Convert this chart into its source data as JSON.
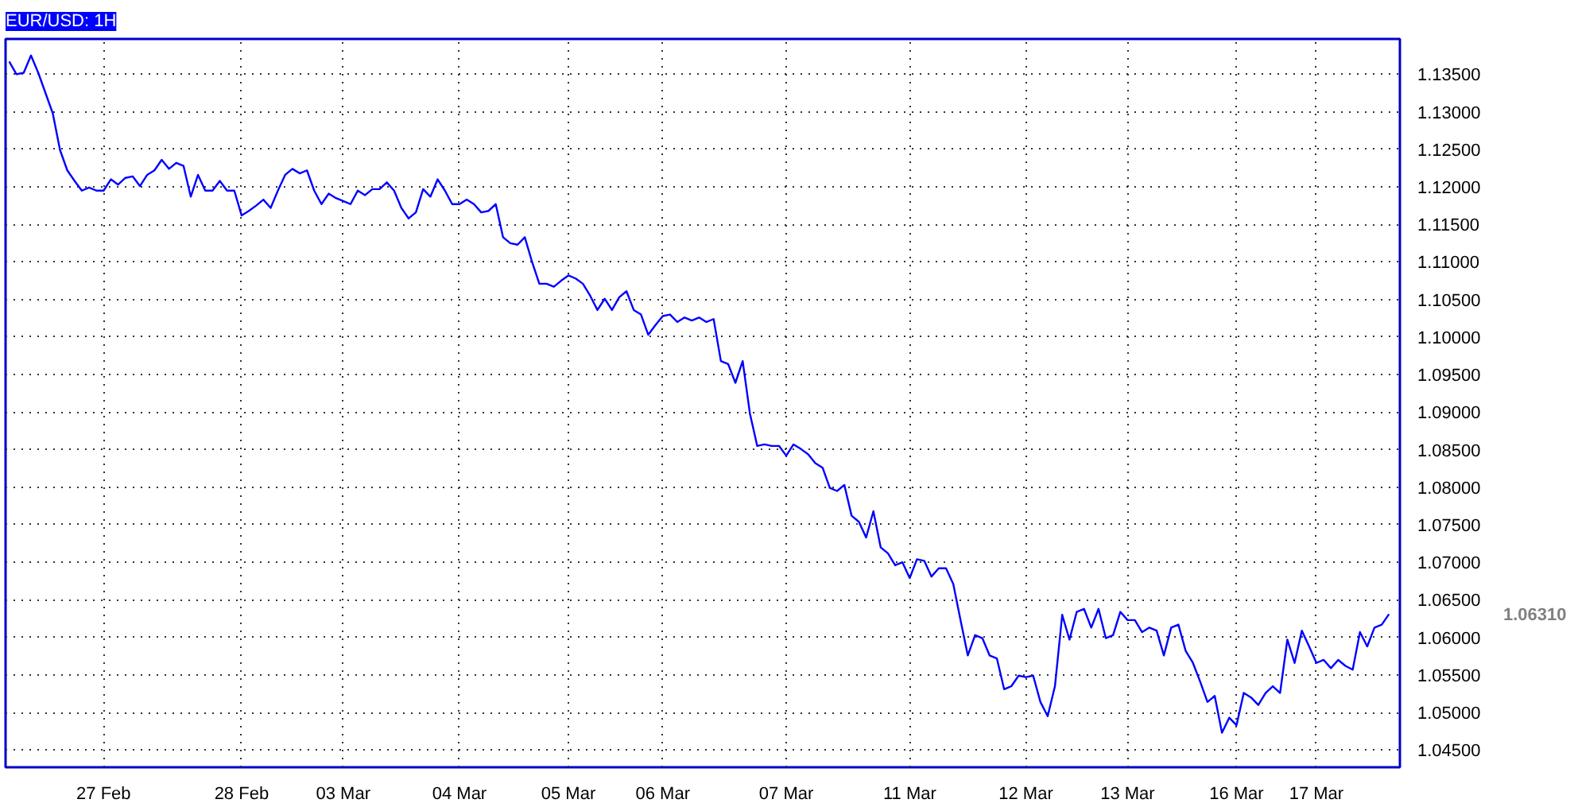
{
  "chart_data": {
    "type": "line",
    "title": "EUR/USD: 1H",
    "categories": [
      null,
      null,
      null,
      null,
      null,
      null,
      null,
      null,
      null,
      null,
      null,
      null,
      null,
      "27 Feb",
      null,
      null,
      null,
      null,
      null,
      null,
      null,
      null,
      null,
      null,
      null,
      null,
      null,
      null,
      null,
      null,
      null,
      null,
      "28 Feb",
      null,
      null,
      null,
      null,
      null,
      null,
      null,
      null,
      null,
      null,
      null,
      null,
      null,
      "03 Mar",
      null,
      null,
      null,
      null,
      null,
      null,
      null,
      null,
      null,
      null,
      null,
      null,
      null,
      null,
      null,
      "04 Mar",
      null,
      null,
      null,
      null,
      null,
      null,
      null,
      null,
      null,
      null,
      null,
      null,
      null,
      null,
      "05 Mar",
      null,
      null,
      null,
      null,
      null,
      null,
      null,
      null,
      null,
      null,
      null,
      null,
      "06 Mar",
      null,
      null,
      null,
      null,
      null,
      null,
      null,
      null,
      null,
      null,
      null,
      null,
      null,
      null,
      null,
      null,
      "07 Mar",
      null,
      null,
      null,
      null,
      null,
      null,
      null,
      null,
      null,
      null,
      null,
      null,
      null,
      null,
      null,
      null,
      "11 Mar",
      null,
      null,
      null,
      null,
      null,
      null,
      null,
      null,
      null,
      null,
      null,
      null,
      null,
      null,
      null,
      "12 Mar",
      null,
      null,
      null,
      null,
      null,
      null,
      null,
      null,
      null,
      null,
      null,
      null,
      null,
      "13 Mar",
      null,
      null,
      null,
      null,
      null,
      null,
      null,
      null,
      null,
      null,
      null,
      null,
      null,
      null,
      "16 Mar",
      null,
      null,
      null,
      null,
      null,
      null,
      null,
      null,
      null,
      null,
      "17 Mar",
      null,
      null,
      null,
      null,
      null,
      null,
      null,
      null,
      null,
      null
    ],
    "series": [
      {
        "color": "#0000ff",
        "values": [
          1.1367,
          1.135,
          1.1352,
          1.1375,
          1.1352,
          1.1325,
          1.1298,
          1.1249,
          1.1222,
          1.1208,
          1.1195,
          1.1199,
          1.1195,
          1.1195,
          1.121,
          1.1203,
          1.1212,
          1.1214,
          1.1201,
          1.1216,
          1.1222,
          1.1236,
          1.1224,
          1.1232,
          1.1228,
          1.1187,
          1.1216,
          1.1195,
          1.1195,
          1.1208,
          1.1195,
          1.1195,
          1.1162,
          1.1168,
          1.1175,
          1.1183,
          1.1172,
          1.1195,
          1.1216,
          1.1224,
          1.1218,
          1.1222,
          1.1195,
          1.1177,
          1.1191,
          1.1185,
          1.1181,
          1.1177,
          1.1195,
          1.1189,
          1.1197,
          1.1197,
          1.1206,
          1.1195,
          1.1172,
          1.1158,
          1.1166,
          1.1197,
          1.1187,
          1.121,
          1.1195,
          1.1177,
          1.1177,
          1.1183,
          1.1177,
          1.1166,
          1.1168,
          1.1177,
          1.1133,
          1.1125,
          1.1123,
          1.1133,
          1.11,
          1.1071,
          1.1071,
          1.1067,
          1.1075,
          1.1082,
          1.1078,
          1.1071,
          1.1055,
          1.1036,
          1.1051,
          1.1036,
          1.1053,
          1.1061,
          1.1036,
          1.103,
          1.1003,
          1.1016,
          1.1028,
          1.103,
          1.102,
          1.1026,
          1.1022,
          1.1026,
          1.102,
          1.1024,
          1.0968,
          1.0964,
          1.0939,
          1.0968,
          1.0898,
          1.0855,
          1.0857,
          1.0855,
          1.0855,
          1.0842,
          1.0857,
          1.0851,
          1.0844,
          1.0832,
          1.0826,
          1.0799,
          1.0795,
          1.0803,
          1.0762,
          1.0754,
          1.0733,
          1.0768,
          1.072,
          1.0712,
          1.0696,
          1.07,
          1.0679,
          1.0704,
          1.0702,
          1.0681,
          1.0692,
          1.0692,
          1.0671,
          1.0623,
          1.0576,
          1.0603,
          1.0599,
          1.0576,
          1.0572,
          1.0531,
          1.0535,
          1.0549,
          1.0547,
          1.0549,
          1.0514,
          1.0495,
          1.0535,
          1.063,
          1.0597,
          1.0634,
          1.0638,
          1.0613,
          1.0638,
          1.0599,
          1.0603,
          1.0634,
          1.0623,
          1.0623,
          1.0607,
          1.0613,
          1.0609,
          1.0576,
          1.0613,
          1.0617,
          1.0582,
          1.0566,
          1.0541,
          1.0514,
          1.0522,
          1.0473,
          1.0493,
          1.0483,
          1.0526,
          1.052,
          1.051,
          1.0526,
          1.0535,
          1.0526,
          1.0597,
          1.0566,
          1.0609,
          1.0588,
          1.0566,
          1.057,
          1.0559,
          1.057,
          1.0562,
          1.0557,
          1.0607,
          1.0588,
          1.0613,
          1.0617,
          1.0631
        ]
      }
    ],
    "ylim": [
      1.0427,
      1.1397
    ],
    "yticks": [
      {
        "value": 1.045,
        "label": "1.04500"
      },
      {
        "value": 1.05,
        "label": "1.05000"
      },
      {
        "value": 1.055,
        "label": "1.05500"
      },
      {
        "value": 1.06,
        "label": "1.06000"
      },
      {
        "value": 1.065,
        "label": "1.06500"
      },
      {
        "value": 1.07,
        "label": "1.07000"
      },
      {
        "value": 1.075,
        "label": "1.07500"
      },
      {
        "value": 1.08,
        "label": "1.08000"
      },
      {
        "value": 1.085,
        "label": "1.08500"
      },
      {
        "value": 1.09,
        "label": "1.09000"
      },
      {
        "value": 1.095,
        "label": "1.09500"
      },
      {
        "value": 1.1,
        "label": "1.10000"
      },
      {
        "value": 1.105,
        "label": "1.10500"
      },
      {
        "value": 1.11,
        "label": "1.11000"
      },
      {
        "value": 1.115,
        "label": "1.11500"
      },
      {
        "value": 1.12,
        "label": "1.12000"
      },
      {
        "value": 1.125,
        "label": "1.12500"
      },
      {
        "value": 1.13,
        "label": "1.13000"
      },
      {
        "value": 1.135,
        "label": "1.13500"
      }
    ],
    "annotations": [
      "1.06310"
    ],
    "grid": true,
    "line_style": "solid",
    "marker": "none"
  }
}
